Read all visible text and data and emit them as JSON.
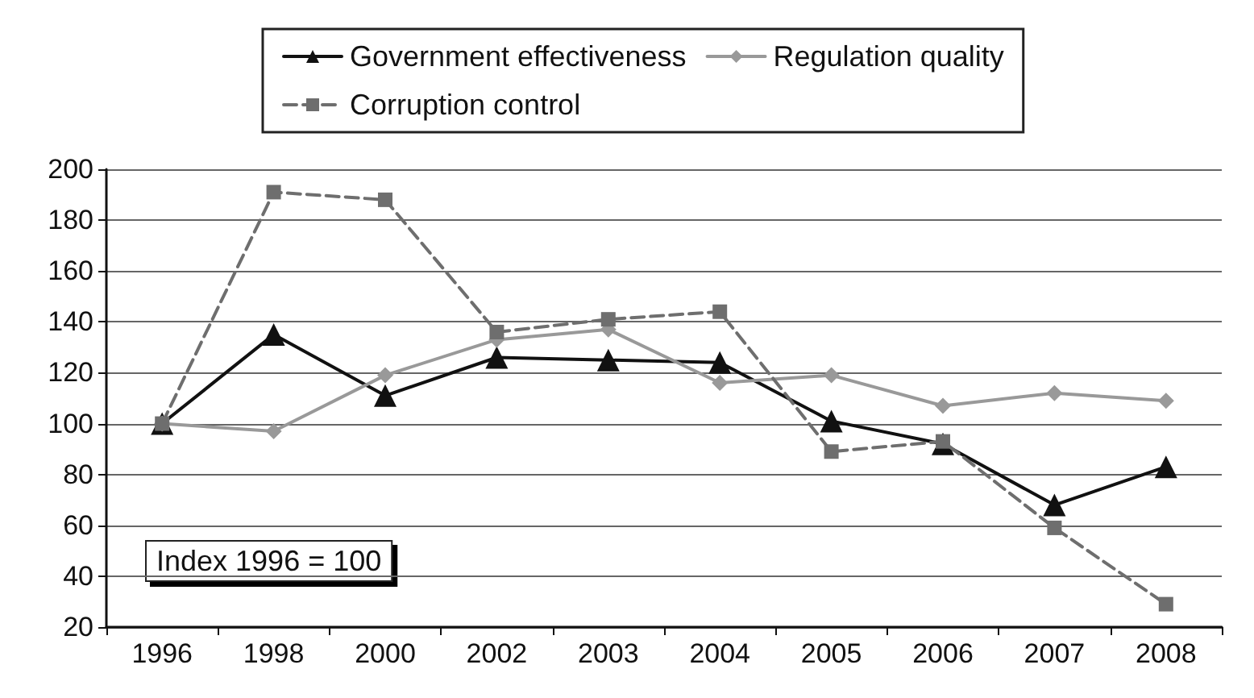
{
  "chart_data": {
    "type": "line",
    "categories": [
      "1996",
      "1998",
      "2000",
      "2002",
      "2003",
      "2004",
      "2005",
      "2006",
      "2007",
      "2008"
    ],
    "series": [
      {
        "name": "Government effectiveness",
        "color": "#111111",
        "marker": "triangle",
        "line_style": "solid",
        "values": [
          100,
          135,
          111,
          126,
          125,
          124,
          101,
          92,
          68,
          83
        ]
      },
      {
        "name": "Regulation quality",
        "color": "#999999",
        "marker": "diamond",
        "line_style": "solid",
        "values": [
          100,
          97,
          119,
          133,
          137,
          116,
          119,
          107,
          112,
          109
        ]
      },
      {
        "name": "Corruption control",
        "color": "#6e6e6e",
        "marker": "square",
        "line_style": "dashed",
        "values": [
          100,
          191,
          188,
          136,
          141,
          144,
          89,
          93,
          59,
          29
        ]
      }
    ],
    "ylim": [
      20,
      200
    ],
    "yticks": [
      20,
      40,
      60,
      80,
      100,
      120,
      140,
      160,
      180,
      200
    ],
    "grid": "y",
    "legend": "top",
    "annotations": [
      "Index 1996 = 100"
    ]
  }
}
